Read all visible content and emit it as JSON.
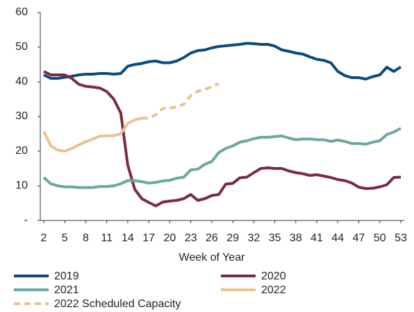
{
  "chart_data": {
    "type": "line",
    "xlabel": "Week of Year",
    "x": [
      2,
      3,
      4,
      5,
      6,
      7,
      8,
      9,
      10,
      11,
      12,
      13,
      14,
      15,
      16,
      17,
      18,
      19,
      20,
      21,
      22,
      23,
      24,
      25,
      26,
      27,
      28,
      29,
      30,
      31,
      32,
      33,
      34,
      35,
      36,
      37,
      38,
      39,
      40,
      41,
      42,
      43,
      44,
      45,
      46,
      47,
      48,
      49,
      50,
      51,
      52,
      53
    ],
    "xlim": [
      2,
      53
    ],
    "xticks": [
      2,
      5,
      8,
      11,
      14,
      17,
      20,
      23,
      26,
      29,
      32,
      35,
      38,
      41,
      44,
      47,
      50,
      53
    ],
    "ylim": [
      0,
      60
    ],
    "yticks": [
      {
        "value": 0,
        "label": "-"
      },
      10,
      20,
      30,
      40,
      50,
      60
    ],
    "grid": false,
    "series": [
      {
        "name": "2019",
        "color": "#0d4a7a",
        "dashed": false,
        "values": [
          42,
          41,
          41,
          41.3,
          41.6,
          42,
          42.2,
          42.2,
          42.4,
          42.4,
          42.2,
          42.4,
          44.5,
          45,
          45.3,
          45.8,
          46,
          45.5,
          45.5,
          46,
          47,
          48.3,
          49,
          49.2,
          49.8,
          50.2,
          50.4,
          50.6,
          50.8,
          51.1,
          51,
          50.8,
          50.8,
          50.3,
          49.2,
          48.8,
          48.3,
          48,
          47.2,
          46.5,
          46.2,
          45.5,
          43,
          41.8,
          41.2,
          41.2,
          40.8,
          41.5,
          42,
          44.2,
          43,
          44.3
        ]
      },
      {
        "name": "2020",
        "color": "#7b2a45",
        "dashed": false,
        "values": [
          43,
          42,
          42,
          42,
          41,
          39.3,
          38.7,
          38.5,
          38.2,
          37.2,
          35,
          31,
          16,
          9,
          6.3,
          5.2,
          4.2,
          5.3,
          5.6,
          5.8,
          6.3,
          7.5,
          5.8,
          6.3,
          7.2,
          7.5,
          10.5,
          10.7,
          12.3,
          12.5,
          13.8,
          15,
          15.2,
          15,
          15,
          14.3,
          13.8,
          13.5,
          13,
          13.2,
          12.8,
          12.4,
          11.8,
          11.5,
          10.8,
          9.6,
          9.2,
          9.3,
          9.7,
          10.3,
          12.4,
          12.5
        ]
      },
      {
        "name": "2021",
        "color": "#6aa8a0",
        "dashed": false,
        "values": [
          12.4,
          10.6,
          10,
          9.7,
          9.7,
          9.5,
          9.5,
          9.5,
          9.8,
          9.8,
          10,
          10.6,
          11.5,
          11.5,
          11.2,
          10.8,
          11,
          11.4,
          11.6,
          12.2,
          12.5,
          14.6,
          14.8,
          16.2,
          17,
          19.6,
          20.8,
          21.5,
          22.6,
          23,
          23.6,
          24,
          24,
          24.2,
          24.4,
          23.8,
          23.3,
          23.5,
          23.5,
          23.3,
          23.3,
          22.8,
          23.2,
          22.8,
          22.2,
          22.2,
          22,
          22.6,
          23,
          24.8,
          25.5,
          26.6
        ]
      },
      {
        "name": "2022",
        "color": "#e8c48f",
        "dashed": false,
        "values": [
          25.7,
          21.5,
          20.3,
          20,
          20.8,
          21.8,
          22.7,
          23.5,
          24.3,
          24.4,
          24.5,
          25,
          28,
          29,
          29.5,
          null,
          null,
          null,
          null,
          null,
          null,
          null,
          null,
          null,
          null,
          null,
          null,
          null,
          null,
          null,
          null,
          null,
          null,
          null,
          null,
          null,
          null,
          null,
          null,
          null,
          null,
          null,
          null,
          null,
          null,
          null,
          null,
          null,
          null,
          null,
          null,
          null
        ]
      },
      {
        "name": "2022 Scheduled Capacity",
        "color": "#e8c48f",
        "dashed": true,
        "values": [
          null,
          null,
          null,
          null,
          null,
          null,
          null,
          null,
          null,
          null,
          null,
          null,
          null,
          null,
          29.5,
          29.5,
          30.5,
          32.3,
          32.4,
          32.8,
          33.5,
          36,
          37.3,
          37.8,
          38.6,
          39.5,
          null,
          null,
          null,
          null,
          null,
          null,
          null,
          null,
          null,
          null,
          null,
          null,
          null,
          null,
          null,
          null,
          null,
          null,
          null,
          null,
          null,
          null,
          null,
          null,
          null,
          null
        ]
      }
    ]
  }
}
